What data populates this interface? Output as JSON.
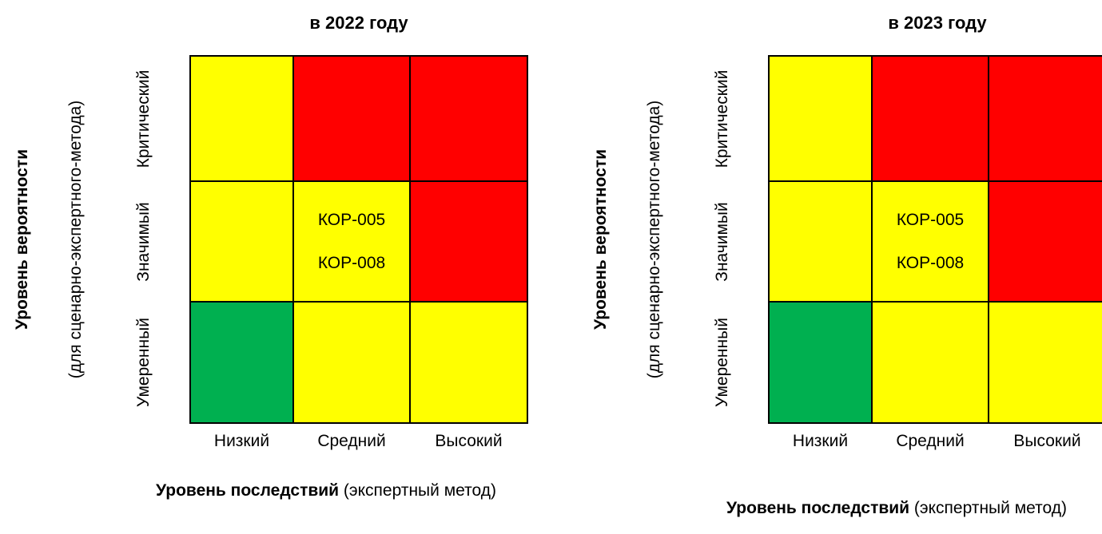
{
  "matrices": [
    {
      "title": "в 2022 году",
      "y_title": "Уровень вероятности",
      "y_subtitle": "(для сценарно-экспертного-метода)",
      "row_labels": [
        "Критический",
        "Значимый",
        "Умеренный"
      ],
      "col_labels": [
        "Низкий",
        "Средний",
        "Высокий"
      ],
      "x_title_bold": "Уровень последствий",
      "x_title_rest": "(экспертный метод)",
      "cells": [
        [
          {
            "color": "#ffff00",
            "items": []
          },
          {
            "color": "#ff0000",
            "items": []
          },
          {
            "color": "#ff0000",
            "items": []
          }
        ],
        [
          {
            "color": "#ffff00",
            "items": []
          },
          {
            "color": "#ffff00",
            "items": [
              "КОР-005",
              "КОР-008"
            ]
          },
          {
            "color": "#ff0000",
            "items": []
          }
        ],
        [
          {
            "color": "#00b050",
            "items": []
          },
          {
            "color": "#ffff00",
            "items": []
          },
          {
            "color": "#ffff00",
            "items": []
          }
        ]
      ]
    },
    {
      "title": "в 2023 году",
      "y_title": "Уровень вероятности",
      "y_subtitle": "(для сценарно-экспертного-метода)",
      "row_labels": [
        "Критический",
        "Значимый",
        "Умеренный"
      ],
      "col_labels": [
        "Низкий",
        "Средний",
        "Высокий"
      ],
      "x_title_bold": "Уровень последствий",
      "x_title_rest": "(экспертный метод)",
      "cells": [
        [
          {
            "color": "#ffff00",
            "items": []
          },
          {
            "color": "#ff0000",
            "items": []
          },
          {
            "color": "#ff0000",
            "items": []
          }
        ],
        [
          {
            "color": "#ffff00",
            "items": []
          },
          {
            "color": "#ffff00",
            "items": [
              "КОР-005",
              "КОР-008"
            ]
          },
          {
            "color": "#ff0000",
            "items": []
          }
        ],
        [
          {
            "color": "#00b050",
            "items": []
          },
          {
            "color": "#ffff00",
            "items": []
          },
          {
            "color": "#ffff00",
            "items": []
          }
        ]
      ]
    }
  ]
}
